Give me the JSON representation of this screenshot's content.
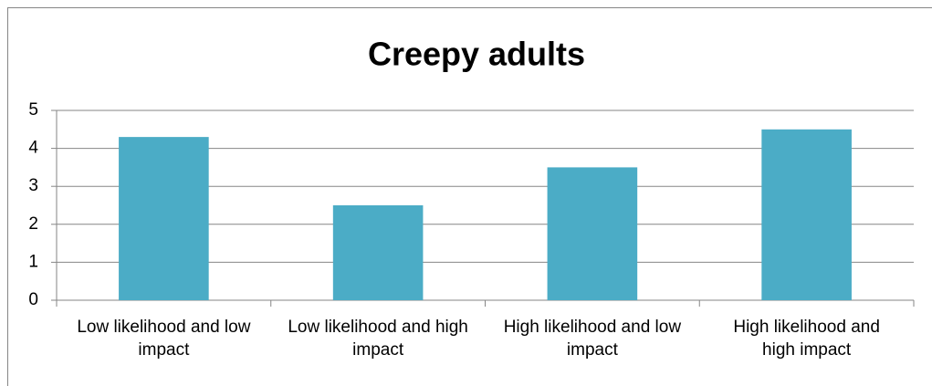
{
  "chart_data": {
    "type": "bar",
    "title": "Creepy adults",
    "categories": [
      "Low likelihood and low impact",
      "Low likelihood and high impact",
      "High likelihood and low impact",
      "High likelihood and high impact"
    ],
    "values": [
      4.3,
      2.5,
      3.5,
      4.5
    ],
    "color": "#4bacc6",
    "ylim": [
      0,
      5
    ],
    "yticks": [
      0,
      1,
      2,
      3,
      4,
      5
    ],
    "grid": true
  }
}
